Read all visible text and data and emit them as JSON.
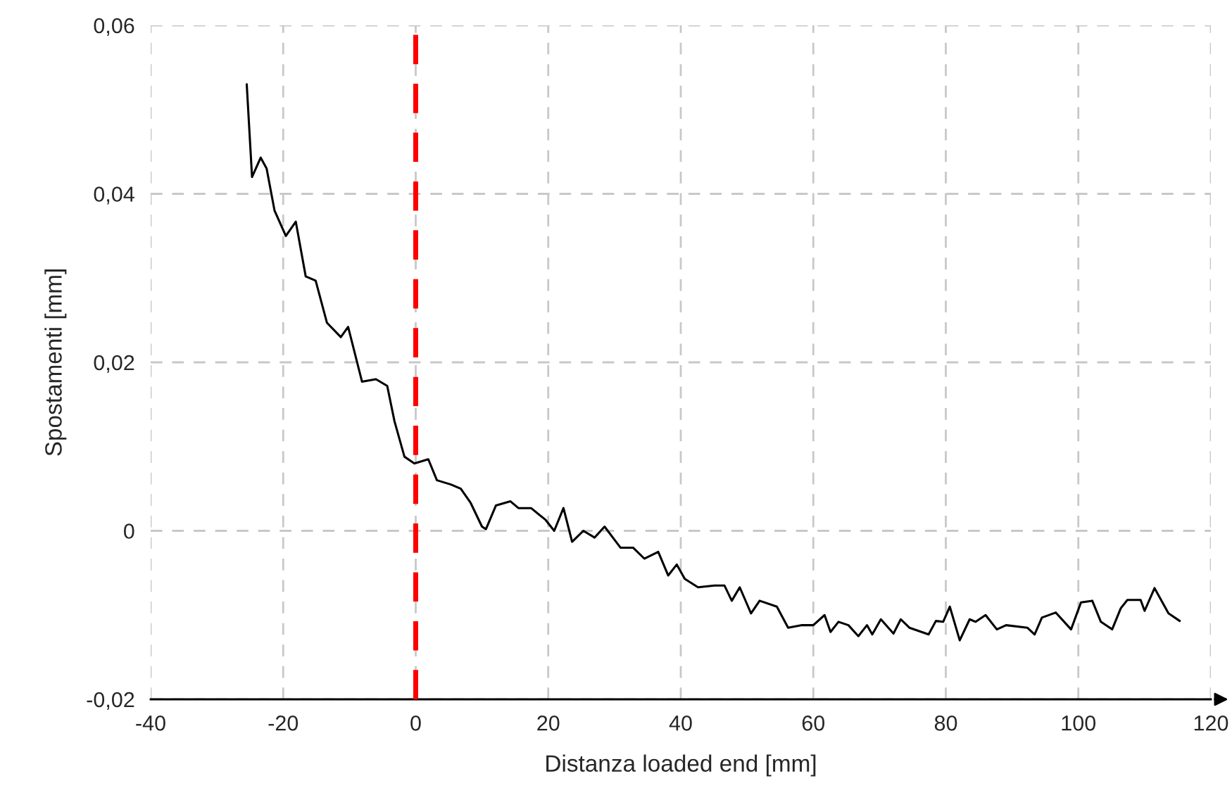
{
  "chart_data": {
    "type": "line",
    "xlabel": "Distanza loaded end [mm]",
    "ylabel": "Spostamenti [mm]",
    "series": [
      {
        "color": "#000000",
        "x": [
          -25.5,
          -24.7,
          -23.4,
          -22.5,
          -21.3,
          -19.6,
          -18.1,
          -16.6,
          -15.1,
          -13.4,
          -11.3,
          -10.2,
          -8.1,
          -6.0,
          -4.3,
          -3.2,
          -1.7,
          -0.2,
          1.9,
          3.2,
          5.3,
          6.8,
          8.3,
          10.0,
          10.6,
          12.1,
          14.3,
          15.5,
          17.4,
          19.6,
          20.9,
          22.3,
          23.6,
          25.3,
          27.0,
          28.5,
          30.9,
          32.8,
          34.5,
          36.6,
          38.1,
          39.4,
          40.6,
          42.6,
          45.1,
          46.6,
          47.7,
          48.9,
          50.6,
          51.9,
          54.5,
          56.2,
          58.3,
          60.0,
          61.7,
          62.6,
          63.8,
          65.3,
          66.8,
          68.1,
          68.9,
          70.2,
          72.1,
          73.2,
          74.5,
          77.4,
          78.5,
          79.6,
          80.6,
          82.1,
          83.6,
          84.5,
          86.0,
          87.7,
          89.1,
          92.3,
          93.4,
          94.5,
          96.6,
          98.9,
          100.4,
          102.1,
          103.4,
          105.1,
          106.4,
          107.4,
          109.4,
          110.0,
          111.5,
          113.6,
          115.3
        ],
        "values": [
          0.053,
          0.042,
          0.0443,
          0.043,
          0.038,
          0.035,
          0.0367,
          0.0302,
          0.0297,
          0.0247,
          0.023,
          0.0242,
          0.0177,
          0.018,
          0.0172,
          0.013,
          0.0088,
          0.008,
          0.0085,
          0.006,
          0.0055,
          0.005,
          0.0033,
          0.0005,
          0.0002,
          0.003,
          0.0035,
          0.0027,
          0.0027,
          0.0013,
          0.0,
          0.0027,
          -0.0013,
          0.0,
          -0.0008,
          0.0005,
          -0.002,
          -0.002,
          -0.0033,
          -0.0025,
          -0.0053,
          -0.004,
          -0.0057,
          -0.0067,
          -0.0065,
          -0.0065,
          -0.0083,
          -0.0067,
          -0.0098,
          -0.0083,
          -0.009,
          -0.0115,
          -0.0112,
          -0.0112,
          -0.01,
          -0.012,
          -0.0108,
          -0.0112,
          -0.0125,
          -0.0112,
          -0.0123,
          -0.0105,
          -0.0122,
          -0.0105,
          -0.0115,
          -0.0123,
          -0.0107,
          -0.0108,
          -0.009,
          -0.013,
          -0.0105,
          -0.0108,
          -0.01,
          -0.0117,
          -0.0112,
          -0.0115,
          -0.0123,
          -0.0103,
          -0.0097,
          -0.0117,
          -0.0085,
          -0.0083,
          -0.0108,
          -0.0117,
          -0.0092,
          -0.0082,
          -0.0082,
          -0.0095,
          -0.0068,
          -0.0098,
          -0.0107
        ]
      }
    ],
    "xlim": [
      -40,
      120
    ],
    "xticks": [
      -40,
      -20,
      0,
      20,
      40,
      60,
      80,
      100,
      120
    ],
    "ylim": [
      -0.02,
      0.06
    ],
    "yticks": [
      {
        "value": -0.02,
        "label": "-0,02"
      },
      {
        "value": 0,
        "label": "0"
      },
      {
        "value": 0.02,
        "label": "0,02"
      },
      {
        "value": 0.04,
        "label": "0,04"
      },
      {
        "value": 0.06,
        "label": "0,06"
      }
    ],
    "ref_lines": [
      {
        "axis": "x",
        "value": 0,
        "color": "#ff0000",
        "line_style": "dashed"
      }
    ],
    "grid": true,
    "marker": "none",
    "line_style": "solid"
  }
}
